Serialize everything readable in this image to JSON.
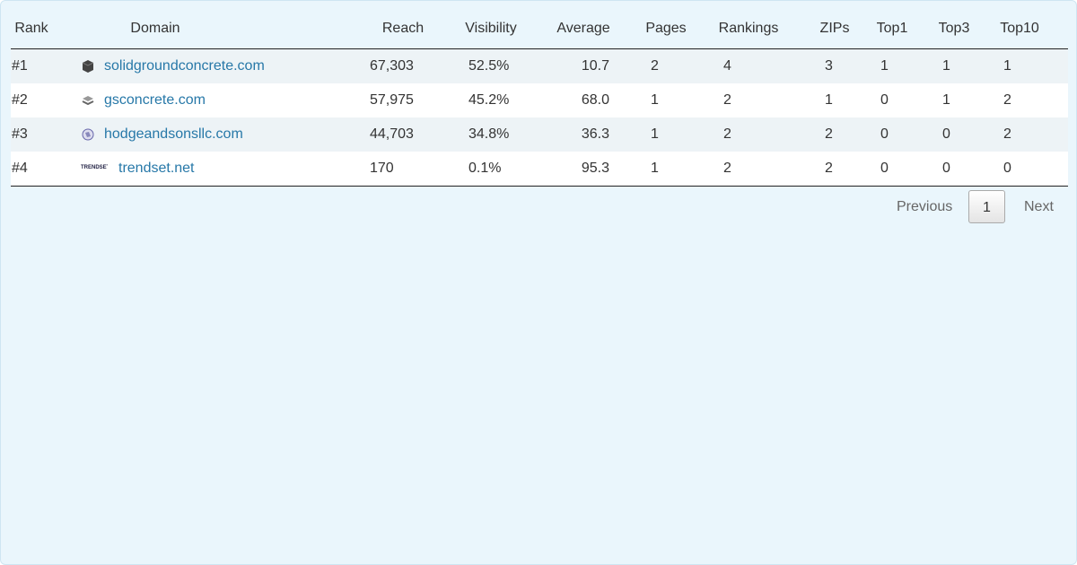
{
  "table": {
    "columns": [
      "Rank",
      "Domain",
      "Reach",
      "Visibility",
      "Average",
      "Pages",
      "Rankings",
      "ZIPs",
      "Top1",
      "Top3",
      "Top10"
    ],
    "rows": [
      [
        "#1",
        "solidgroundconcrete.com",
        "67,303",
        "52.5%",
        "10.7",
        "2",
        "4",
        "3",
        "1",
        "1",
        "1"
      ],
      [
        "#2",
        "gsconcrete.com",
        "57,975",
        "45.2%",
        "68.0",
        "1",
        "2",
        "1",
        "0",
        "1",
        "2"
      ],
      [
        "#3",
        "hodgeandsonsllc.com",
        "44,703",
        "34.8%",
        "36.3",
        "1",
        "2",
        "2",
        "0",
        "0",
        "2"
      ],
      [
        "#4",
        "trendset.net",
        "170",
        "0.1%",
        "95.3",
        "1",
        "2",
        "2",
        "0",
        "0",
        "0"
      ]
    ]
  },
  "pagination": {
    "previous": "Previous",
    "current": "1",
    "next": "Next"
  }
}
